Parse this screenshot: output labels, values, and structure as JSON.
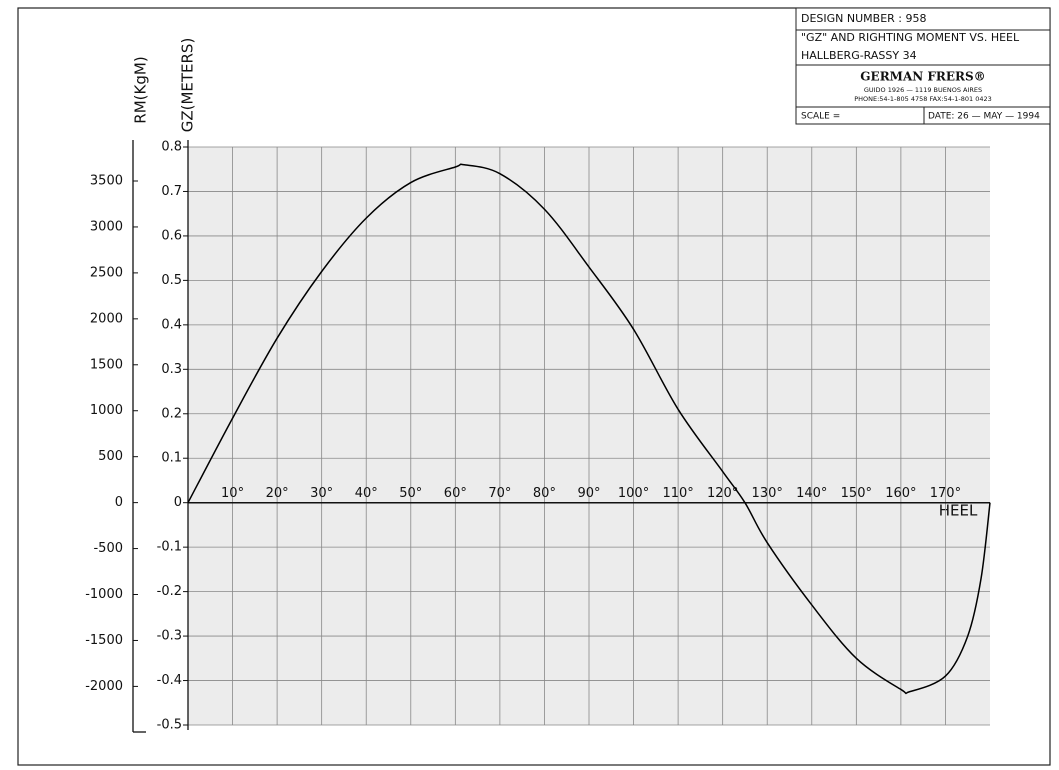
{
  "chart_data": {
    "type": "line",
    "design_number": "DESIGN NUMBER : 958",
    "title": "\"GZ\" AND RIGHTING MOMENT VS. HEEL",
    "subtitle": "HALLBERG-RASSY 34",
    "designer": "GERMAN FRERS®",
    "address": "GUIDO 1926 — 1119 BUENOS AIRES",
    "phone": "PHONE:54-1-805 4758   FAX:54-1-801 0423",
    "scale": "SCALE =",
    "date": "DATE: 26 — MAY — 1994",
    "xlabel": "HEEL",
    "ylabel": "GZ(METERS)",
    "y2label": "RM(KgM)",
    "x": [
      0,
      10,
      20,
      30,
      40,
      50,
      60,
      62,
      70,
      80,
      90,
      100,
      110,
      120,
      125,
      130,
      140,
      150,
      160,
      162,
      170,
      175,
      178,
      180
    ],
    "values": [
      0,
      0.19,
      0.37,
      0.52,
      0.64,
      0.72,
      0.755,
      0.76,
      0.74,
      0.66,
      0.53,
      0.39,
      0.21,
      0.07,
      0,
      -0.09,
      -0.23,
      -0.35,
      -0.42,
      -0.425,
      -0.39,
      -0.3,
      -0.17,
      0
    ],
    "color": "#000000",
    "xlim": [
      0,
      180
    ],
    "xticks": [
      {
        "value": 10,
        "label": "10°"
      },
      {
        "value": 20,
        "label": "20°"
      },
      {
        "value": 30,
        "label": "30°"
      },
      {
        "value": 40,
        "label": "40°"
      },
      {
        "value": 50,
        "label": "50°"
      },
      {
        "value": 60,
        "label": "60°"
      },
      {
        "value": 70,
        "label": "70°"
      },
      {
        "value": 80,
        "label": "80°"
      },
      {
        "value": 90,
        "label": "90°"
      },
      {
        "value": 100,
        "label": "100°"
      },
      {
        "value": 110,
        "label": "110°"
      },
      {
        "value": 120,
        "label": "120°"
      },
      {
        "value": 130,
        "label": "130°"
      },
      {
        "value": 140,
        "label": "140°"
      },
      {
        "value": 150,
        "label": "150°"
      },
      {
        "value": 160,
        "label": "160°"
      },
      {
        "value": 170,
        "label": "170°"
      }
    ],
    "ylim": [
      -0.5,
      0.8
    ],
    "yticks": [
      0.8,
      0.7,
      0.6,
      0.5,
      0.4,
      0.3,
      0.2,
      0.1,
      0,
      -0.1,
      -0.2,
      -0.3,
      -0.4,
      -0.5
    ],
    "y2lim": [
      -2420,
      3870
    ],
    "y2ticks": [
      3500,
      3000,
      2500,
      2000,
      1500,
      1000,
      500,
      0,
      -500,
      -1000,
      -1500,
      -2000
    ],
    "grid": true
  }
}
